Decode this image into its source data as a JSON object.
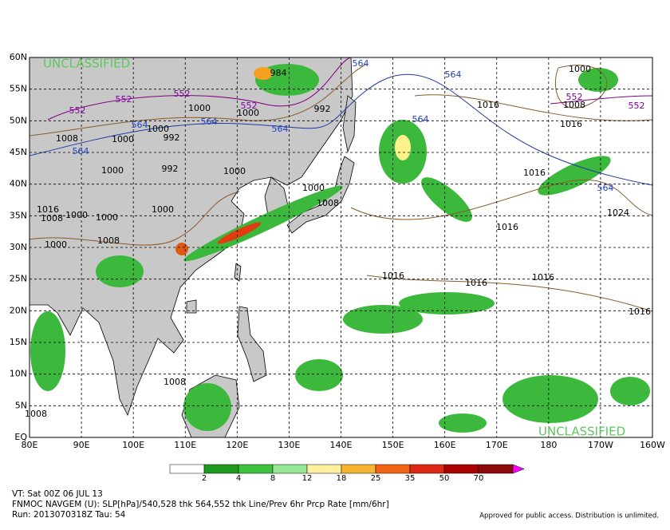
{
  "map": {
    "lat_labels": [
      "60N",
      "55N",
      "50N",
      "45N",
      "40N",
      "35N",
      "30N",
      "25N",
      "20N",
      "15N",
      "10N",
      "5N",
      "EQ"
    ],
    "lon_labels": [
      "80E",
      "90E",
      "100E",
      "110E",
      "120E",
      "130E",
      "140E",
      "150E",
      "160E",
      "170E",
      "180",
      "170W",
      "160W"
    ],
    "classification_top": "UNCLASSIFIED",
    "classification_bottom": "UNCLASSIFIED",
    "contour_labels": [
      "1000",
      "984",
      "552",
      "552",
      "552",
      "552",
      "1000",
      "1000",
      "992",
      "564",
      "564",
      "564",
      "564",
      "564",
      "564",
      "564",
      "1000",
      "992",
      "1000",
      "1008",
      "1000",
      "992",
      "1000",
      "1000",
      "1008",
      "1016",
      "1000",
      "1000",
      "1008",
      "1000",
      "1008",
      "1000",
      "1016",
      "1008",
      "552",
      "552",
      "1016",
      "1016",
      "564",
      "1024",
      "1016",
      "1016",
      "1016",
      "1016",
      "1016",
      "1008",
      "1008"
    ]
  },
  "colorbar": {
    "labels": [
      2,
      4,
      8,
      12,
      18,
      25,
      35,
      50,
      70
    ]
  },
  "footer": {
    "valid_time": "VT: Sat 00Z 06 JUL 13",
    "description": "FNMOC NAVGEM (U): SLP[hPa]/540,528 thk 564,552 thk Line/Prev 6hr Prcp Rate [mm/6hr]",
    "run": "Run: 2013070318Z Tau: 54",
    "disclaimer": "Approved for public access. Distribution is unlimited."
  }
}
